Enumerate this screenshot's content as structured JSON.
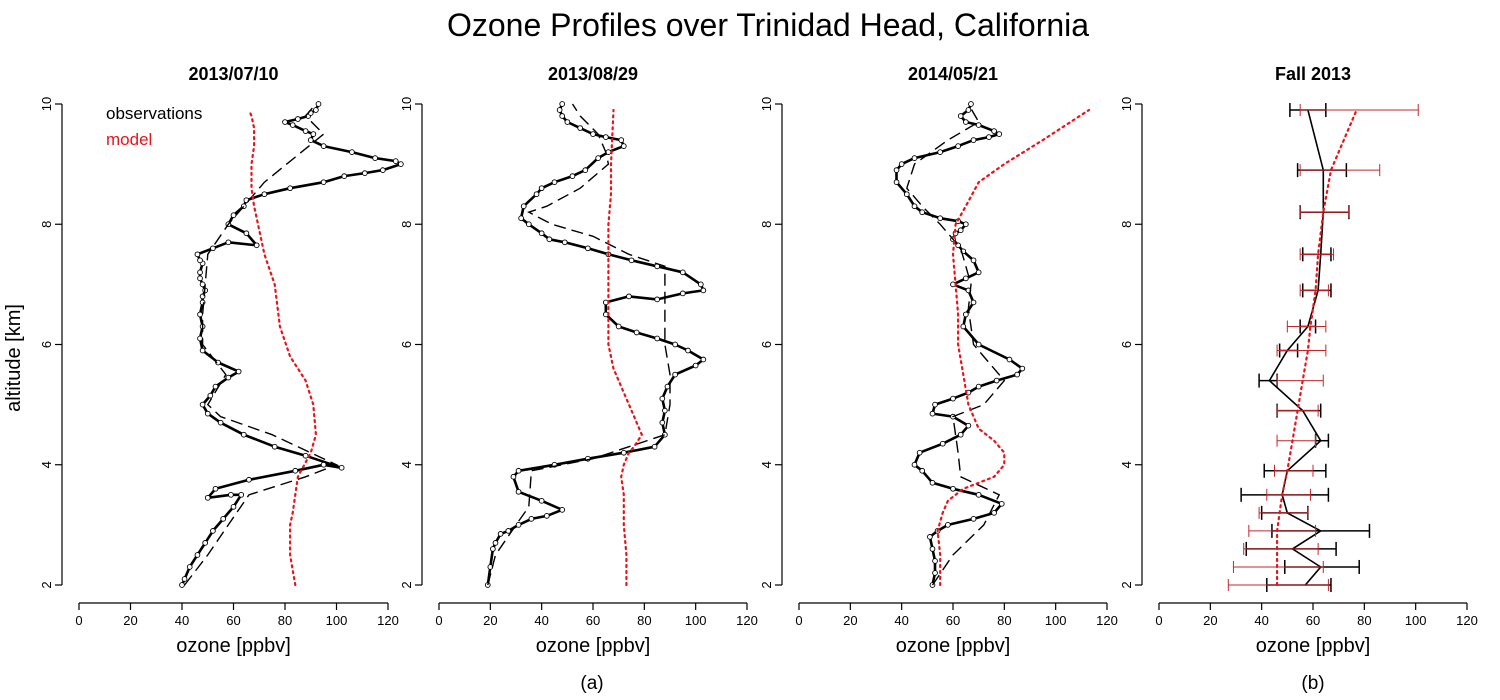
{
  "figure": {
    "title": "Ozone Profiles over Trinidad Head, California",
    "ylabel": "altitude [km]",
    "xlabel": "ozone [ppbv]",
    "panel_labels": [
      "(a)",
      "(b)"
    ],
    "legend": {
      "observations": "observations",
      "model": "model"
    },
    "colors": {
      "observations": "#000000",
      "model": "#e8141b",
      "model_bars": "#c1272d"
    }
  },
  "chart_data": [
    {
      "type": "line",
      "title": "2013/07/10",
      "xlabel": "ozone [ppbv]",
      "ylabel": "altitude [km]",
      "xlim": [
        0,
        120
      ],
      "ylim": [
        2,
        10
      ],
      "xticks": [
        0,
        20,
        40,
        60,
        80,
        100,
        120
      ],
      "yticks": [
        2,
        4,
        6,
        8,
        10
      ],
      "grid": false,
      "legend_position": "top-left",
      "series": [
        {
          "name": "observations",
          "style": "solid-circles",
          "x": [
            40,
            41,
            43,
            46,
            49,
            52,
            56,
            60,
            63,
            59,
            50,
            53,
            66,
            84,
            95,
            102,
            88,
            76,
            64,
            55,
            50,
            48,
            51,
            53,
            58,
            62,
            54,
            48,
            47,
            48,
            47,
            48,
            48,
            49,
            48,
            47,
            47,
            48,
            47,
            46,
            52,
            58,
            69,
            65,
            58,
            60,
            64,
            65,
            72,
            82,
            95,
            103,
            111,
            118,
            125,
            123,
            115,
            106,
            95,
            90,
            91,
            88,
            83,
            80,
            85,
            89,
            90,
            92,
            93
          ],
          "y": [
            2.0,
            2.1,
            2.3,
            2.5,
            2.7,
            2.9,
            3.1,
            3.3,
            3.5,
            3.5,
            3.45,
            3.6,
            3.75,
            3.9,
            4.0,
            3.95,
            4.15,
            4.3,
            4.5,
            4.7,
            4.85,
            5.0,
            5.15,
            5.3,
            5.45,
            5.55,
            5.7,
            5.9,
            6.1,
            6.3,
            6.5,
            6.7,
            6.8,
            6.9,
            7.0,
            7.1,
            7.2,
            7.35,
            7.4,
            7.5,
            7.6,
            7.7,
            7.65,
            7.85,
            8.0,
            8.15,
            8.3,
            8.4,
            8.5,
            8.6,
            8.7,
            8.8,
            8.85,
            8.9,
            9.0,
            9.05,
            9.1,
            9.2,
            9.3,
            9.4,
            9.5,
            9.55,
            9.65,
            9.7,
            9.75,
            9.8,
            9.85,
            9.9,
            10.0
          ]
        },
        {
          "name": "smoothed observations",
          "style": "dashed",
          "x": [
            41,
            50,
            58,
            66,
            88,
            100,
            75,
            55,
            50,
            57,
            48,
            48,
            49,
            50,
            58,
            68,
            72,
            95,
            88,
            92
          ],
          "y": [
            2.0,
            2.5,
            3.0,
            3.5,
            3.8,
            4.0,
            4.5,
            4.8,
            5.0,
            5.5,
            6.0,
            6.5,
            7.0,
            7.5,
            8.0,
            8.5,
            8.7,
            9.5,
            9.8,
            10.0
          ]
        },
        {
          "name": "model",
          "style": "dotted",
          "x": [
            84,
            82,
            82,
            83,
            84,
            85,
            90,
            92,
            91,
            88,
            85,
            82,
            78,
            76,
            72,
            70,
            68,
            67,
            67,
            68,
            68,
            67,
            66
          ],
          "y": [
            2.0,
            2.5,
            3.0,
            3.2,
            3.5,
            3.8,
            4.2,
            4.5,
            5.0,
            5.4,
            5.6,
            5.8,
            6.3,
            7.0,
            7.5,
            7.9,
            8.3,
            8.6,
            9.0,
            9.3,
            9.6,
            9.8,
            9.9
          ]
        }
      ]
    },
    {
      "type": "line",
      "title": "2013/08/29",
      "xlabel": "ozone [ppbv]",
      "xlim": [
        0,
        120
      ],
      "ylim": [
        2,
        10
      ],
      "xticks": [
        0,
        20,
        40,
        60,
        80,
        100,
        120
      ],
      "yticks": [
        2,
        4,
        6,
        8,
        10
      ],
      "grid": false,
      "series": [
        {
          "name": "observations",
          "style": "solid-circles",
          "x": [
            19,
            20,
            21,
            22,
            24,
            27,
            31,
            36,
            42,
            48,
            40,
            31,
            29,
            31,
            45,
            58,
            72,
            84,
            88,
            87,
            88,
            87,
            89,
            92,
            100,
            103,
            97,
            92,
            85,
            77,
            70,
            65,
            65,
            74,
            85,
            95,
            103,
            102,
            95,
            85,
            75,
            66,
            58,
            49,
            43,
            40,
            35,
            32,
            33,
            38,
            40,
            45,
            52,
            57,
            62,
            66,
            72,
            71,
            65,
            60,
            55,
            50,
            48,
            47,
            48
          ],
          "y": [
            2.0,
            2.3,
            2.6,
            2.7,
            2.85,
            2.9,
            3.0,
            3.1,
            3.15,
            3.25,
            3.4,
            3.55,
            3.8,
            3.9,
            4.0,
            4.1,
            4.2,
            4.3,
            4.5,
            4.7,
            4.9,
            5.1,
            5.3,
            5.5,
            5.65,
            5.75,
            5.9,
            6.0,
            6.1,
            6.2,
            6.3,
            6.5,
            6.7,
            6.8,
            6.75,
            6.85,
            6.9,
            7.0,
            7.2,
            7.3,
            7.4,
            7.5,
            7.6,
            7.7,
            7.75,
            7.85,
            8.0,
            8.1,
            8.3,
            8.5,
            8.6,
            8.7,
            8.8,
            8.9,
            9.1,
            9.2,
            9.3,
            9.4,
            9.45,
            9.5,
            9.6,
            9.7,
            9.8,
            9.9,
            10.0
          ]
        },
        {
          "name": "smoothed observations",
          "style": "dashed",
          "x": [
            19,
            22,
            30,
            35,
            36,
            60,
            88,
            90,
            90,
            88,
            88,
            88,
            74,
            60,
            44,
            35,
            42,
            55,
            66,
            65,
            62,
            55,
            52
          ],
          "y": [
            2.0,
            2.5,
            3.0,
            3.3,
            3.9,
            4.1,
            4.5,
            5.0,
            5.5,
            6.0,
            6.5,
            7.3,
            7.5,
            7.8,
            8.0,
            8.2,
            8.3,
            8.6,
            9.0,
            9.2,
            9.5,
            9.8,
            10.0
          ]
        },
        {
          "name": "model",
          "style": "dotted",
          "x": [
            73,
            73,
            72,
            72,
            71,
            72,
            74,
            76,
            79,
            76,
            72,
            68,
            66,
            66,
            66,
            66,
            66,
            67,
            67,
            68
          ],
          "y": [
            2.0,
            2.5,
            3.0,
            3.5,
            3.8,
            4.0,
            4.2,
            4.3,
            4.5,
            4.8,
            5.2,
            5.6,
            6.0,
            6.5,
            7.0,
            7.5,
            8.0,
            8.5,
            9.0,
            9.9
          ]
        }
      ]
    },
    {
      "type": "line",
      "title": "2014/05/21",
      "xlabel": "ozone [ppbv]",
      "xlim": [
        0,
        120
      ],
      "ylim": [
        2,
        10
      ],
      "xticks": [
        0,
        20,
        40,
        60,
        80,
        100,
        120
      ],
      "yticks": [
        2,
        4,
        6,
        8,
        10
      ],
      "grid": false,
      "series": [
        {
          "name": "observations",
          "style": "solid-circles",
          "x": [
            52,
            53,
            53,
            52,
            51,
            54,
            58,
            68,
            76,
            79,
            70,
            60,
            52,
            48,
            45,
            47,
            56,
            63,
            66,
            60,
            52,
            53,
            60,
            66,
            70,
            77,
            85,
            87,
            82,
            70,
            64,
            65,
            68,
            66,
            60,
            65,
            70,
            68,
            64,
            62,
            60,
            61,
            63,
            65,
            62,
            55,
            48,
            45,
            42,
            38,
            38,
            40,
            45,
            55,
            62,
            68,
            74,
            78,
            76,
            70,
            65,
            63,
            66,
            67
          ],
          "y": [
            2.0,
            2.2,
            2.4,
            2.6,
            2.8,
            2.9,
            3.0,
            3.1,
            3.2,
            3.35,
            3.5,
            3.6,
            3.7,
            3.9,
            4.0,
            4.2,
            4.35,
            4.5,
            4.65,
            4.8,
            4.85,
            5.0,
            5.1,
            5.2,
            5.3,
            5.4,
            5.5,
            5.6,
            5.75,
            6.0,
            6.3,
            6.5,
            6.7,
            6.9,
            7.0,
            7.1,
            7.2,
            7.4,
            7.55,
            7.65,
            7.75,
            7.85,
            7.9,
            8.0,
            8.05,
            8.1,
            8.2,
            8.3,
            8.5,
            8.7,
            8.9,
            9.0,
            9.1,
            9.2,
            9.3,
            9.4,
            9.45,
            9.5,
            9.55,
            9.65,
            9.7,
            9.8,
            9.9,
            10.0
          ]
        },
        {
          "name": "smoothed observations",
          "style": "dashed",
          "x": [
            52,
            60,
            72,
            78,
            63,
            62,
            60,
            72,
            80,
            68,
            66,
            67,
            63,
            55,
            48,
            42,
            45,
            58,
            70,
            66
          ],
          "y": [
            2.0,
            2.5,
            3.0,
            3.5,
            3.8,
            4.2,
            4.8,
            5.0,
            5.4,
            6.0,
            6.6,
            7.0,
            7.6,
            8.0,
            8.3,
            8.6,
            9.0,
            9.4,
            9.7,
            10.0
          ]
        },
        {
          "name": "model",
          "style": "dotted",
          "x": [
            55,
            55,
            54,
            56,
            58,
            64,
            70,
            76,
            80,
            80,
            76,
            70,
            66,
            64,
            62,
            62,
            61,
            60,
            61,
            65,
            70,
            80,
            95,
            113
          ],
          "y": [
            2.0,
            2.5,
            2.9,
            3.2,
            3.4,
            3.6,
            3.7,
            3.8,
            4.0,
            4.2,
            4.4,
            4.6,
            5.0,
            5.5,
            6.0,
            6.5,
            7.0,
            7.5,
            8.0,
            8.3,
            8.7,
            9.0,
            9.4,
            9.9
          ]
        }
      ]
    },
    {
      "type": "line",
      "title": "Fall 2013",
      "xlabel": "ozone [ppbv]",
      "xlim": [
        0,
        120
      ],
      "ylim": [
        2,
        10
      ],
      "xticks": [
        0,
        20,
        40,
        60,
        80,
        100,
        120
      ],
      "yticks": [
        2,
        4,
        6,
        8,
        10
      ],
      "grid": false,
      "series": [
        {
          "name": "observations",
          "style": "solid",
          "y": [
            2.0,
            2.3,
            2.6,
            2.9,
            3.2,
            3.5,
            3.9,
            4.4,
            4.9,
            5.4,
            5.9,
            6.3,
            6.9,
            7.5,
            8.2,
            8.9,
            9.9
          ],
          "x": [
            57,
            63,
            52,
            63,
            50,
            48,
            50,
            63,
            56,
            43,
            50,
            58,
            62,
            63,
            64,
            64,
            58
          ],
          "err_low": [
            42,
            49,
            34,
            44,
            40,
            32,
            41,
            61,
            46,
            39,
            47,
            55,
            56,
            56,
            55,
            54,
            51
          ],
          "err_high": [
            67,
            78,
            69,
            82,
            58,
            66,
            65,
            66,
            63,
            46,
            54,
            61,
            67,
            67,
            74,
            73,
            65
          ]
        },
        {
          "name": "model",
          "style": "dotted",
          "y": [
            2.0,
            2.3,
            2.6,
            2.9,
            3.2,
            3.5,
            3.9,
            4.4,
            4.9,
            5.4,
            5.9,
            6.3,
            6.9,
            7.5,
            8.2,
            8.9,
            9.9
          ],
          "x": [
            46,
            46,
            46,
            46,
            47,
            48,
            50,
            52,
            54,
            56,
            58,
            59,
            61,
            62,
            64,
            67,
            77
          ],
          "err_low": [
            27,
            29,
            33,
            35,
            39,
            42,
            45,
            46,
            46,
            46,
            46,
            50,
            55,
            55,
            55,
            55,
            55
          ],
          "err_high": [
            66,
            64,
            62,
            61,
            58,
            59,
            60,
            61,
            62,
            64,
            65,
            65,
            66,
            68,
            74,
            86,
            101
          ]
        }
      ]
    }
  ]
}
